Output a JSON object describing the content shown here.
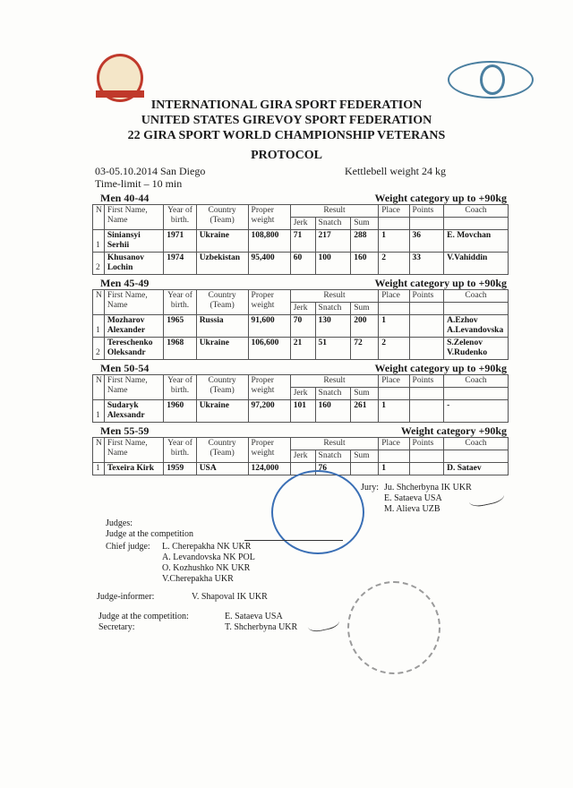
{
  "header": {
    "line1": "INTERNATIONAL  GIRA  SPORT  FEDERATION",
    "line2": "UNITED STATES GIREVOY SPORT FEDERATION",
    "line3": "22 GIRA SPORT WORLD CHAMPIONSHIP VETERANS",
    "protocol": "PROTOCOL"
  },
  "info": {
    "date_place": "03-05.10.2014 San Diego",
    "time_limit": "Time-limit – 10 min",
    "kettlebell": "Kettlebell weight 24 kg"
  },
  "columns": {
    "n": "N",
    "name": "First Name, Name",
    "year": "Year of birth.",
    "country": "Country (Team)",
    "weight": "Proper weight",
    "result": "Result",
    "jerk": "Jerk",
    "snatch": "Snatch",
    "sum": "Sum",
    "place": "Place",
    "points": "Points",
    "coach": "Coach"
  },
  "categories": [
    {
      "age": "Men 40-44",
      "weight_cat": "Weight category up to +90kg",
      "rows": [
        {
          "n": "1",
          "name": "Siniansyi Serhii",
          "year": "1971",
          "country": "Ukraine",
          "weight": "108,800",
          "jerk": "71",
          "snatch": "217",
          "sum": "288",
          "place": "1",
          "points": "36",
          "coach": "E. Movchan"
        },
        {
          "n": "2",
          "name": "Khusanov Lochin",
          "year": "1974",
          "country": "Uzbekistan",
          "weight": "95,400",
          "jerk": "60",
          "snatch": "100",
          "sum": "160",
          "place": "2",
          "points": "33",
          "coach": "V.Vahiddin"
        }
      ]
    },
    {
      "age": "Men 45-49",
      "weight_cat": "Weight category up to +90kg",
      "rows": [
        {
          "n": "1",
          "name": "Mozharov Alexander",
          "year": "1965",
          "country": "Russia",
          "weight": "91,600",
          "jerk": "70",
          "snatch": "130",
          "sum": "200",
          "place": "1",
          "points": "",
          "coach": "A.Ezhov A.Levandovska"
        },
        {
          "n": "2",
          "name": "Tereschenko Oleksandr",
          "year": "1968",
          "country": "Ukraine",
          "weight": "106,600",
          "jerk": "21",
          "snatch": "51",
          "sum": "72",
          "place": "2",
          "points": "",
          "coach": "S.Zelenov V.Rudenko"
        }
      ]
    },
    {
      "age": "Men 50-54",
      "weight_cat": "Weight category up to +90kg",
      "rows": [
        {
          "n": "1",
          "name": "Sudaryk Alexsandr",
          "year": "1960",
          "country": "Ukraine",
          "weight": "97,200",
          "jerk": "101",
          "snatch": "160",
          "sum": "261",
          "place": "1",
          "points": "",
          "coach": "-"
        }
      ]
    },
    {
      "age": "Men 55-59",
      "weight_cat": "Weight category  +90kg",
      "rows": [
        {
          "n": "1",
          "name": "Texeira Kirk",
          "year": "1959",
          "country": "USA",
          "weight": "124,000",
          "jerk": "",
          "snatch": "76",
          "sum": "",
          "place": "1",
          "points": "",
          "coach": "D. Sataev"
        }
      ]
    }
  ],
  "jury": {
    "label": "Jury:",
    "members": [
      "Ju. Shcherbyna IK  UKR",
      "E. Sataeva  USA",
      "M. Alieva  UZB"
    ]
  },
  "judges": {
    "label": "Judges:",
    "judge_comp": "Judge at the competition",
    "chief_label": "Chief judge:",
    "chief": [
      "L. Cherepakha  NK  UKR",
      "A. Levandovska NK  POL",
      "O. Kozhushko NK UKR",
      "V.Cherepakha  UKR"
    ],
    "informer_label": "Judge-informer:",
    "informer": "V. Shapoval IK  UKR",
    "comp_label": "Judge at the competition:",
    "comp": "E. Sataeva   USA",
    "secretary_label": "Secretary:",
    "secretary": "T. Shcherbyna UKR"
  },
  "stamps": {
    "ifgs": "INTERNATIONAL GIRA SPORT FEDERATION",
    "usgsf": "UNITED STATES GIREVOY SPORT FEDERATION"
  }
}
